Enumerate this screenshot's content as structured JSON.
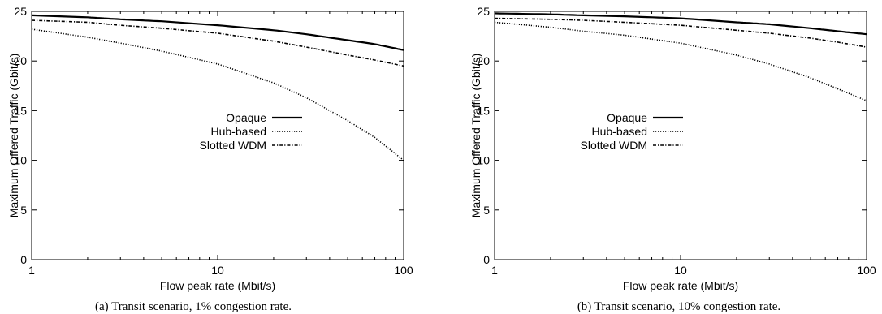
{
  "chart_data": [
    {
      "type": "line",
      "xscale": "log",
      "xlim": [
        1,
        100
      ],
      "ylim": [
        0,
        25
      ],
      "xticks": [
        "1",
        "10",
        "100"
      ],
      "yticks": [
        "0",
        "5",
        "10",
        "15",
        "20",
        "25"
      ],
      "xlabel": "Flow peak rate (Mbit/s)",
      "ylabel": "Maximum Offered Traffic (Gbit/s)",
      "caption": "(a) Transit scenario, 1% congestion rate.",
      "grid": false,
      "legend_position": "center-right",
      "series": [
        {
          "name": "Opaque",
          "style": "solid",
          "x": [
            1,
            2,
            3,
            5,
            10,
            20,
            30,
            50,
            70,
            100
          ],
          "y": [
            24.6,
            24.4,
            24.2,
            24.0,
            23.6,
            23.1,
            22.7,
            22.1,
            21.7,
            21.1
          ]
        },
        {
          "name": "Hub-based",
          "style": "dotted",
          "x": [
            1,
            2,
            3,
            5,
            10,
            20,
            30,
            50,
            70,
            100
          ],
          "y": [
            23.2,
            22.4,
            21.8,
            21.0,
            19.7,
            17.8,
            16.3,
            14.0,
            12.3,
            10.0
          ]
        },
        {
          "name": "Slotted WDM",
          "style": "dashdot",
          "x": [
            1,
            2,
            3,
            5,
            10,
            20,
            30,
            50,
            70,
            100
          ],
          "y": [
            24.1,
            23.9,
            23.6,
            23.3,
            22.8,
            22.0,
            21.4,
            20.6,
            20.1,
            19.5
          ]
        }
      ]
    },
    {
      "type": "line",
      "xscale": "log",
      "xlim": [
        1,
        100
      ],
      "ylim": [
        0,
        25
      ],
      "xticks": [
        "1",
        "10",
        "100"
      ],
      "yticks": [
        "0",
        "5",
        "10",
        "15",
        "20",
        "25"
      ],
      "xlabel": "Flow peak rate (Mbit/s)",
      "ylabel": "Maximum Offered Traffic (Gbit/s)",
      "caption": "(b) Transit scenario, 10% congestion rate.",
      "grid": false,
      "legend_position": "center-right",
      "series": [
        {
          "name": "Opaque",
          "style": "solid",
          "x": [
            1,
            2,
            3,
            5,
            10,
            20,
            30,
            50,
            70,
            100
          ],
          "y": [
            24.8,
            24.7,
            24.6,
            24.5,
            24.3,
            23.9,
            23.7,
            23.3,
            23.0,
            22.7
          ]
        },
        {
          "name": "Hub-based",
          "style": "dotted",
          "x": [
            1,
            2,
            3,
            5,
            10,
            20,
            30,
            50,
            70,
            100
          ],
          "y": [
            23.9,
            23.4,
            23.0,
            22.6,
            21.8,
            20.6,
            19.7,
            18.3,
            17.2,
            16.0
          ]
        },
        {
          "name": "Slotted WDM",
          "style": "dashdot",
          "x": [
            1,
            2,
            3,
            5,
            10,
            20,
            30,
            50,
            70,
            100
          ],
          "y": [
            24.3,
            24.2,
            24.1,
            23.9,
            23.6,
            23.1,
            22.8,
            22.3,
            21.9,
            21.4
          ]
        }
      ]
    }
  ]
}
